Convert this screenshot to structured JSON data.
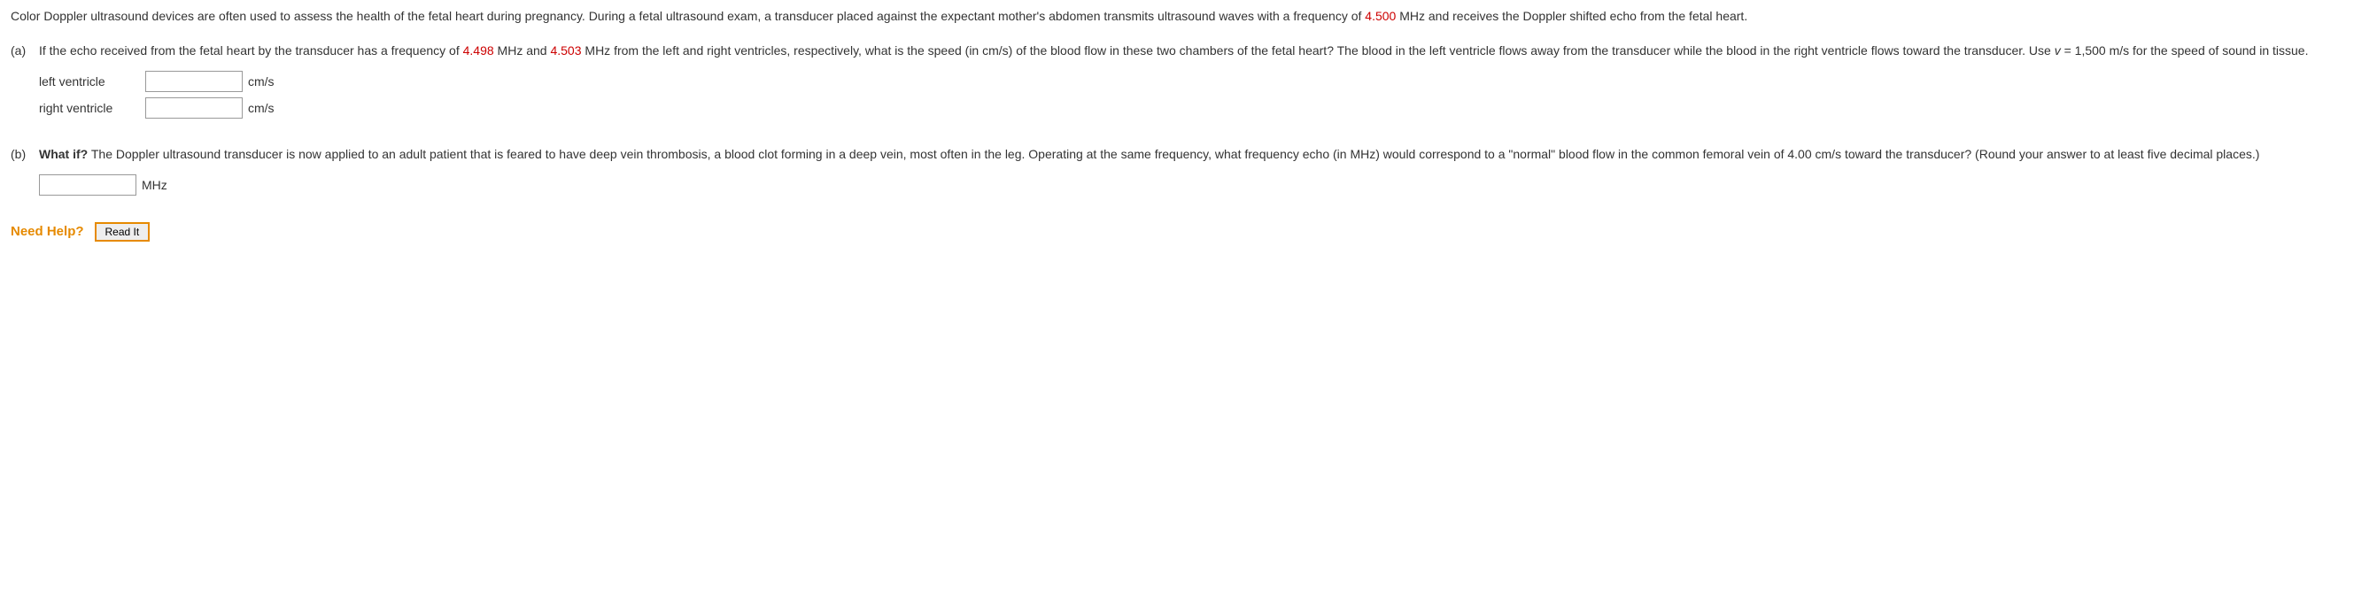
{
  "intro": {
    "t1": "Color Doppler ultrasound devices are often used to assess the health of the fetal heart during pregnancy. During a fetal ultrasound exam, a transducer placed against the expectant mother's abdomen transmits ultrasound waves with a frequency of ",
    "freq": "4.500",
    "t2": " MHz and receives the Doppler shifted echo from the fetal heart."
  },
  "partA": {
    "label": "(a)",
    "t1": "If the echo received from the fetal heart by the transducer has a frequency of ",
    "f1": "4.498",
    "t2": " MHz and ",
    "f2": "4.503",
    "t3": " MHz from the left and right ventricles, respectively, what is the speed (in cm/s) of the blood flow in these two chambers of the fetal heart? The blood in the left ventricle flows away from the transducer while the blood in the right ventricle flows toward the transducer. Use ",
    "v": "v",
    "t4": " = 1,500 m/s for the speed of sound in tissue.",
    "leftLabel": "left ventricle",
    "rightLabel": "right ventricle",
    "unit": "cm/s"
  },
  "partB": {
    "label": "(b)",
    "whatif": "What if?",
    "t1": " The Doppler ultrasound transducer is now applied to an adult patient that is feared to have deep vein thrombosis, a blood clot forming in a deep vein, most often in the leg. Operating at the same frequency, what frequency echo (in MHz) would correspond to a \"normal\" blood flow in the common femoral vein of 4.00 cm/s toward the transducer? (Round your answer to at least five decimal places.)",
    "unit": "MHz"
  },
  "help": {
    "label": "Need Help?",
    "button": "Read It"
  }
}
